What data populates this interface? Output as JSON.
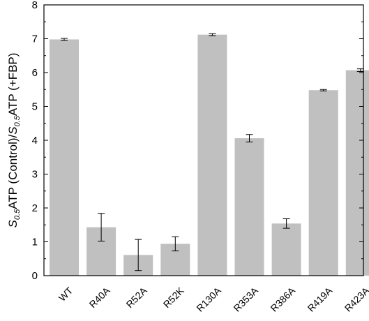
{
  "chart_data": {
    "type": "bar",
    "categories": [
      "WT",
      "R40A",
      "R52A",
      "R52K",
      "R130A",
      "R353A",
      "R386A",
      "R419A",
      "R423A"
    ],
    "values": [
      6.98,
      1.43,
      0.61,
      0.94,
      7.12,
      4.06,
      1.54,
      5.48,
      6.07
    ],
    "errors": [
      0.03,
      0.41,
      0.46,
      0.21,
      0.03,
      0.11,
      0.14,
      0.02,
      0.04
    ],
    "ylim": [
      0,
      8
    ],
    "yticks": [
      "0",
      "1",
      "2",
      "3",
      "4",
      "5",
      "6",
      "7",
      "8"
    ],
    "ylabel": {
      "italic1": "S",
      "sub1": "0.5",
      "middle": "ATP (Control)/",
      "italic2": "S",
      "sub2": "0.5",
      "tail": "ATP (+FBP)"
    },
    "xlabel": "",
    "title": "",
    "bar_color": "#c0c0c0",
    "grid": false
  }
}
